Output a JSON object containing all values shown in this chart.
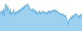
{
  "values": [
    55,
    52,
    58,
    48,
    62,
    45,
    68,
    72,
    55,
    68,
    58,
    50,
    62,
    48,
    55,
    52,
    60,
    48,
    55,
    50,
    58,
    52,
    60,
    55,
    62,
    58,
    65,
    60,
    68,
    65,
    70,
    68,
    72,
    68,
    65,
    62,
    60,
    58,
    62,
    55,
    60,
    52,
    58,
    50,
    55,
    52,
    58,
    50,
    55,
    52,
    58,
    52,
    55,
    50,
    55,
    50,
    58,
    52,
    58,
    52,
    58,
    55,
    60,
    55,
    60,
    55,
    58,
    52,
    55,
    50,
    52,
    48,
    52,
    48,
    50,
    45,
    48,
    42,
    35,
    28,
    40,
    38,
    45,
    40,
    48,
    42,
    50,
    48,
    52,
    50,
    45,
    48,
    42,
    50,
    45,
    52
  ],
  "line_color": "#5aaee0",
  "fill_color": "#9ed0f0",
  "background_color": "#ffffff",
  "ylim_min": 15,
  "ylim_max": 80
}
